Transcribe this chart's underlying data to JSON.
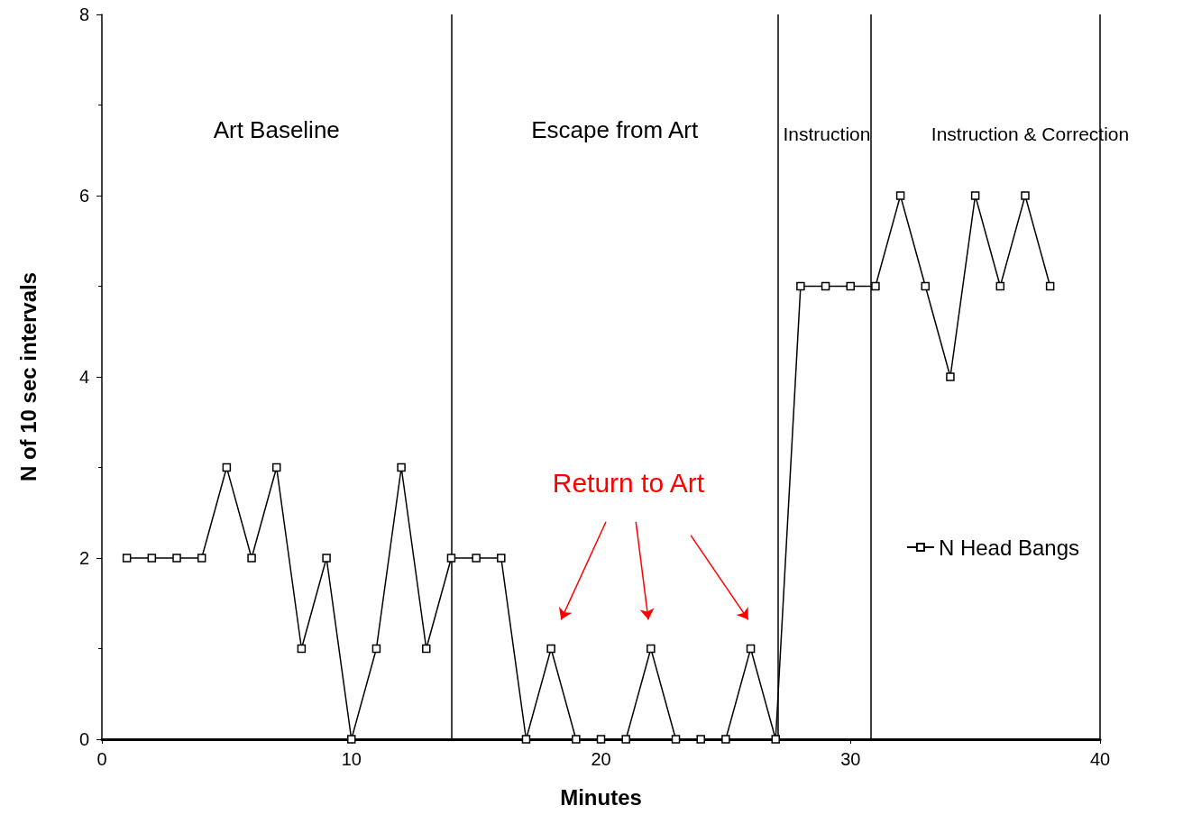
{
  "chart_data": {
    "type": "line",
    "xlabel": "Minutes",
    "ylabel": "N of 10 sec intervals",
    "x": [
      1,
      2,
      3,
      4,
      5,
      6,
      7,
      8,
      9,
      10,
      11,
      12,
      13,
      14,
      15,
      16,
      17,
      18,
      19,
      20,
      21,
      22,
      23,
      24,
      25,
      26,
      27,
      28,
      29,
      30,
      31,
      32,
      33,
      34,
      35,
      36,
      37,
      38
    ],
    "series": [
      {
        "name": "N Head Bangs",
        "color": "#000000",
        "values": [
          2,
          2,
          2,
          2,
          3,
          2,
          3,
          1,
          2,
          0,
          1,
          3,
          1,
          2,
          2,
          2,
          0,
          1,
          0,
          0,
          0,
          1,
          0,
          0,
          0,
          1,
          0,
          5,
          5,
          5,
          5,
          6,
          5,
          4,
          6,
          5,
          6,
          5
        ]
      }
    ],
    "xlim": [
      0,
      40
    ],
    "xticks": [
      0,
      10,
      20,
      30,
      40
    ],
    "ylim": [
      0,
      8
    ],
    "yticks": [
      0,
      2,
      4,
      6,
      8
    ],
    "ref_lines": [
      {
        "axis": "x",
        "value": 14
      },
      {
        "axis": "x",
        "value": 27.1
      },
      {
        "axis": "x",
        "value": 30.8
      },
      {
        "axis": "x",
        "value": 40
      }
    ],
    "annotations": [
      "Art Baseline",
      "Escape from Art",
      "Instruction",
      "Instruction & Correction",
      "Return to Art"
    ],
    "legend": "right",
    "marker": "square",
    "line_style": "solid",
    "grid": false
  }
}
